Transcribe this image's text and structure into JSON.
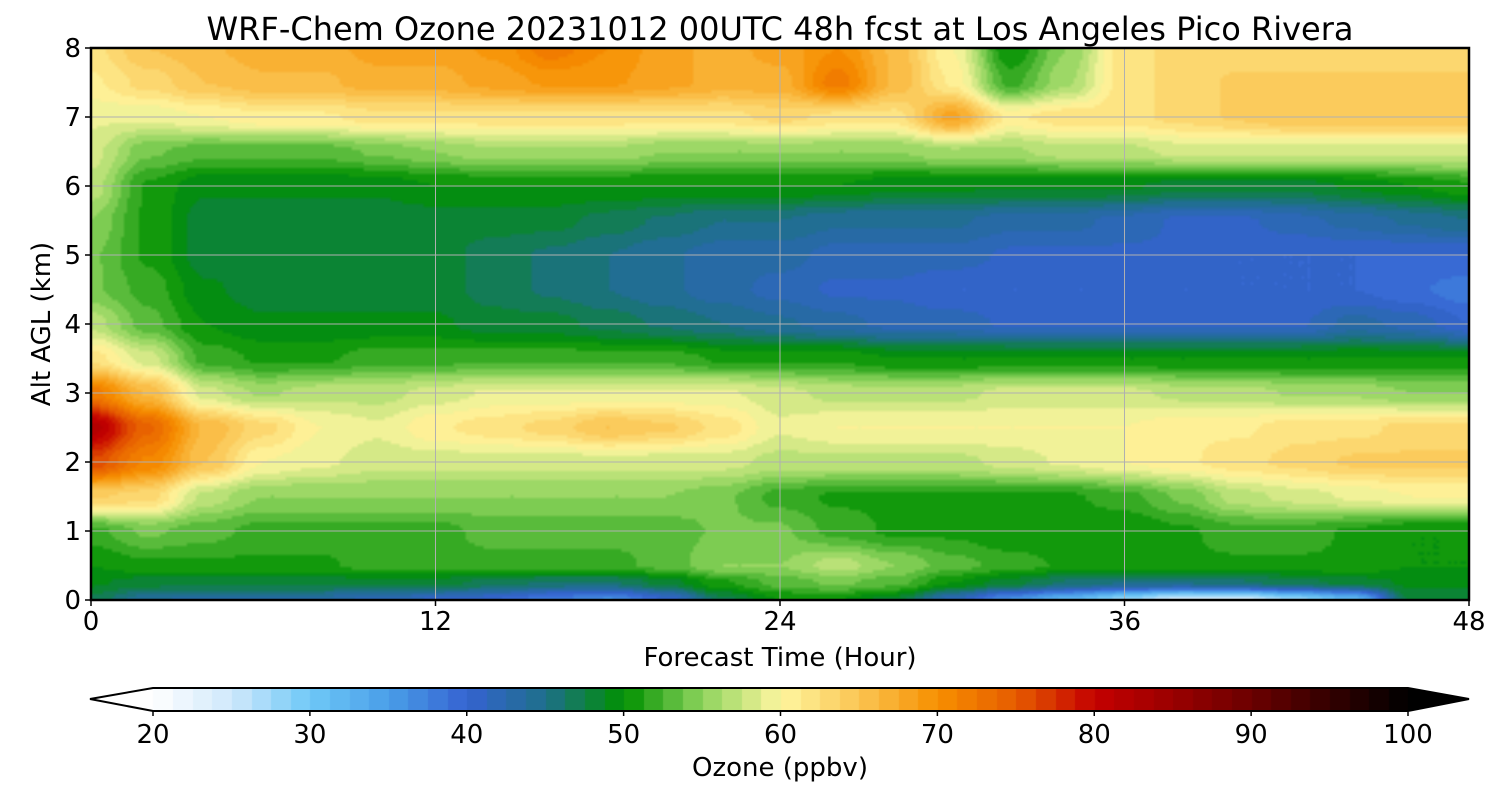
{
  "chart_data": {
    "type": "heatmap",
    "title": "WRF-Chem Ozone  20231012 00UTC 48h fcst at Los Angeles Pico Rivera",
    "xlabel": "Forecast Time (Hour)",
    "ylabel": "Alt AGL (km)",
    "xlim": [
      0,
      48
    ],
    "ylim": [
      0,
      8
    ],
    "x_ticks": [
      "0",
      "12",
      "24",
      "36",
      "48"
    ],
    "y_ticks": [
      "0",
      "1",
      "2",
      "3",
      "4",
      "5",
      "6",
      "7",
      "8"
    ],
    "grid": true,
    "colorbar": {
      "label": "Ozone  (ppbv)",
      "min": 20,
      "max": 100,
      "ticks": [
        "20",
        "30",
        "40",
        "50",
        "60",
        "70",
        "80",
        "90",
        "100"
      ],
      "extend": "both",
      "color_stops": [
        [
          20,
          "#ffffff"
        ],
        [
          25,
          "#cfe8fb"
        ],
        [
          30,
          "#6ec8f7"
        ],
        [
          35,
          "#4a9ee8"
        ],
        [
          40,
          "#3563d1"
        ],
        [
          45,
          "#1e6f8a"
        ],
        [
          50,
          "#009100"
        ],
        [
          55,
          "#8fd45e"
        ],
        [
          60,
          "#fff6a0"
        ],
        [
          65,
          "#fac552"
        ],
        [
          70,
          "#f78f00"
        ],
        [
          75,
          "#e65c00"
        ],
        [
          80,
          "#c40000"
        ],
        [
          85,
          "#9a0000"
        ],
        [
          90,
          "#6b0000"
        ],
        [
          95,
          "#330000"
        ],
        [
          100,
          "#000000"
        ]
      ]
    },
    "x": [
      0,
      2,
      4,
      6,
      8,
      10,
      12,
      14,
      16,
      18,
      20,
      22,
      24,
      26,
      28,
      30,
      32,
      34,
      36,
      38,
      40,
      42,
      44,
      46,
      48
    ],
    "y": [
      0,
      0.25,
      0.5,
      1,
      1.5,
      2,
      2.5,
      3,
      3.5,
      4,
      4.5,
      5,
      5.5,
      6,
      6.5,
      7,
      7.5,
      8
    ],
    "z": [
      [
        47,
        44,
        43,
        43,
        43,
        42,
        41,
        40,
        38,
        36,
        40,
        47,
        50,
        50,
        48,
        42,
        36,
        32,
        28,
        24,
        24,
        28,
        32,
        48,
        48
      ],
      [
        49,
        48,
        48,
        48,
        48,
        48,
        48,
        47,
        46,
        46,
        48,
        51,
        53,
        54,
        53,
        50,
        48,
        46,
        45,
        45,
        46,
        47,
        48,
        49,
        49
      ],
      [
        50,
        51,
        51,
        51,
        51,
        52,
        52,
        52,
        52,
        52,
        53,
        55,
        55,
        57,
        55,
        53,
        52,
        51,
        51,
        51,
        51,
        51,
        51,
        50,
        50
      ],
      [
        52,
        54,
        53,
        52,
        52,
        52,
        52,
        53,
        53,
        53,
        53,
        54,
        54,
        52,
        51,
        51,
        50,
        50,
        50,
        51,
        52,
        52,
        51,
        50,
        50
      ],
      [
        64,
        63,
        57,
        55,
        55,
        55,
        55,
        55,
        55,
        55,
        55,
        54,
        52,
        51,
        51,
        51,
        51,
        51,
        52,
        54,
        57,
        58,
        59,
        60,
        60
      ],
      [
        76,
        71,
        65,
        60,
        59,
        58,
        58,
        58,
        58,
        58,
        58,
        58,
        57,
        57,
        57,
        57,
        58,
        59,
        60,
        61,
        62,
        63,
        64,
        64,
        64
      ],
      [
        82,
        74,
        66,
        63,
        60,
        59,
        61,
        62,
        63,
        65,
        64,
        62,
        59,
        60,
        60,
        60,
        60,
        60,
        60,
        61,
        61,
        62,
        62,
        63,
        63
      ],
      [
        72,
        66,
        58,
        56,
        57,
        57,
        58,
        59,
        59,
        59,
        59,
        59,
        58,
        57,
        57,
        57,
        58,
        58,
        58,
        57,
        57,
        56,
        56,
        55,
        55
      ],
      [
        62,
        58,
        52,
        51,
        51,
        52,
        52,
        52,
        52,
        52,
        52,
        51,
        51,
        51,
        50,
        50,
        50,
        50,
        50,
        50,
        50,
        50,
        50,
        50,
        50
      ],
      [
        57,
        53,
        50,
        49,
        49,
        49,
        49,
        48,
        48,
        47,
        46,
        45,
        44,
        43,
        42,
        42,
        41,
        41,
        41,
        41,
        41,
        41,
        43,
        42,
        40
      ],
      [
        54,
        52,
        49,
        48,
        48,
        48,
        48,
        47,
        46,
        45,
        44,
        43,
        42,
        41,
        41,
        40,
        40,
        40,
        40,
        40,
        40,
        40,
        40,
        39,
        38
      ],
      [
        54,
        51,
        48,
        48,
        48,
        48,
        48,
        47,
        46,
        45,
        44,
        43,
        43,
        42,
        42,
        42,
        41,
        41,
        41,
        41,
        40,
        40,
        40,
        40,
        40
      ],
      [
        55,
        51,
        48,
        48,
        48,
        48,
        48,
        48,
        48,
        47,
        46,
        45,
        45,
        44,
        44,
        44,
        43,
        43,
        42,
        41,
        41,
        42,
        43,
        44,
        45
      ],
      [
        57,
        51,
        49,
        49,
        49,
        49,
        50,
        50,
        50,
        50,
        50,
        50,
        50,
        50,
        49,
        49,
        49,
        49,
        49,
        48,
        48,
        48,
        49,
        50,
        51
      ],
      [
        58,
        54,
        53,
        53,
        53,
        54,
        55,
        56,
        56,
        56,
        55,
        55,
        55,
        55,
        55,
        56,
        56,
        57,
        57,
        58,
        58,
        58,
        58,
        58,
        58
      ],
      [
        59,
        59,
        60,
        61,
        61,
        62,
        62,
        62,
        62,
        62,
        62,
        62,
        63,
        62,
        62,
        68,
        61,
        62,
        62,
        63,
        64,
        65,
        65,
        65,
        65
      ],
      [
        61,
        63,
        65,
        66,
        66,
        67,
        67,
        68,
        69,
        69,
        68,
        67,
        67,
        72,
        66,
        61,
        52,
        56,
        62,
        63,
        64,
        64,
        64,
        64,
        64
      ],
      [
        62,
        65,
        66,
        67,
        67,
        68,
        68,
        69,
        72,
        70,
        68,
        67,
        68,
        70,
        66,
        60,
        50,
        55,
        62,
        63,
        63,
        63,
        63,
        63,
        63
      ]
    ]
  }
}
